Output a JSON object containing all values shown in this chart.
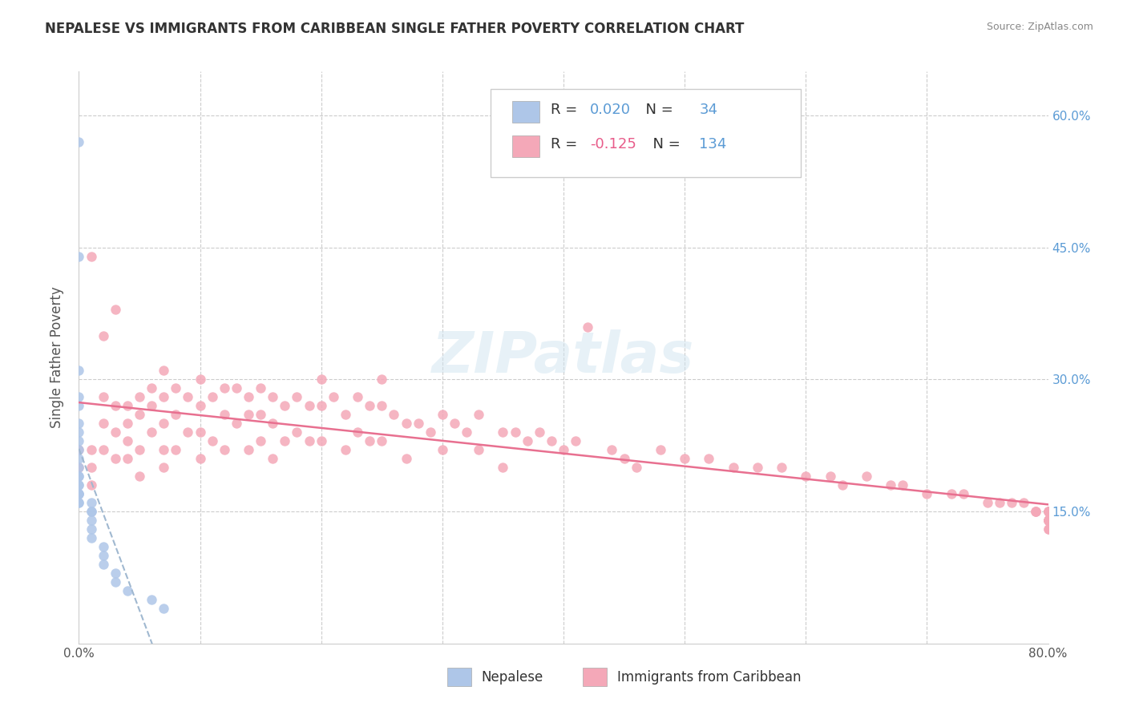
{
  "title": "NEPALESE VS IMMIGRANTS FROM CARIBBEAN SINGLE FATHER POVERTY CORRELATION CHART",
  "source": "Source: ZipAtlas.com",
  "xlabel_bottom": "",
  "ylabel": "Single Father Poverty",
  "legend_label1": "Nepalese",
  "legend_label2": "Immigrants from Caribbean",
  "R1": 0.02,
  "N1": 34,
  "R2": -0.125,
  "N2": 134,
  "color1": "#aec6e8",
  "color2": "#f4a8b8",
  "line1_color": "#5b9bd5",
  "line2_color": "#e85c8a",
  "trendline1_color": "#a0b8d0",
  "trendline1_style": "--",
  "trendline2_color": "#e87090",
  "trendline2_style": "-",
  "xmin": 0.0,
  "xmax": 0.8,
  "ymin": 0.0,
  "ymax": 0.65,
  "x_ticks": [
    0.0,
    0.1,
    0.2,
    0.3,
    0.4,
    0.5,
    0.6,
    0.7,
    0.8
  ],
  "x_tick_labels": [
    "0.0%",
    "",
    "",
    "",
    "",
    "",
    "",
    "",
    "80.0%"
  ],
  "y_ticks_left": [
    0.0,
    0.15,
    0.3,
    0.45,
    0.6
  ],
  "y_tick_labels_left": [
    "",
    "",
    "",
    "",
    ""
  ],
  "y_ticks_right": [
    0.15,
    0.3,
    0.45,
    0.6
  ],
  "y_tick_labels_right": [
    "15.0%",
    "30.0%",
    "45.0%",
    "60.0%"
  ],
  "watermark": "ZIPatlas",
  "nepalese_x": [
    0.0,
    0.0,
    0.0,
    0.0,
    0.0,
    0.0,
    0.0,
    0.0,
    0.0,
    0.0,
    0.0,
    0.0,
    0.0,
    0.0,
    0.0,
    0.0,
    0.0,
    0.0,
    0.0,
    0.0,
    0.01,
    0.01,
    0.01,
    0.01,
    0.01,
    0.01,
    0.02,
    0.02,
    0.02,
    0.03,
    0.03,
    0.04,
    0.06,
    0.07
  ],
  "nepalese_y": [
    0.57,
    0.44,
    0.31,
    0.28,
    0.27,
    0.25,
    0.24,
    0.23,
    0.22,
    0.21,
    0.2,
    0.19,
    0.19,
    0.18,
    0.18,
    0.17,
    0.17,
    0.17,
    0.16,
    0.16,
    0.16,
    0.15,
    0.15,
    0.14,
    0.13,
    0.12,
    0.11,
    0.1,
    0.09,
    0.08,
    0.07,
    0.06,
    0.05,
    0.04
  ],
  "caribbean_x": [
    0.0,
    0.0,
    0.01,
    0.01,
    0.01,
    0.01,
    0.02,
    0.02,
    0.02,
    0.02,
    0.03,
    0.03,
    0.03,
    0.03,
    0.04,
    0.04,
    0.04,
    0.04,
    0.05,
    0.05,
    0.05,
    0.05,
    0.06,
    0.06,
    0.06,
    0.07,
    0.07,
    0.07,
    0.07,
    0.07,
    0.08,
    0.08,
    0.08,
    0.09,
    0.09,
    0.1,
    0.1,
    0.1,
    0.1,
    0.11,
    0.11,
    0.12,
    0.12,
    0.12,
    0.13,
    0.13,
    0.14,
    0.14,
    0.14,
    0.15,
    0.15,
    0.15,
    0.16,
    0.16,
    0.16,
    0.17,
    0.17,
    0.18,
    0.18,
    0.19,
    0.19,
    0.2,
    0.2,
    0.2,
    0.21,
    0.22,
    0.22,
    0.23,
    0.23,
    0.24,
    0.24,
    0.25,
    0.25,
    0.25,
    0.26,
    0.27,
    0.27,
    0.28,
    0.29,
    0.3,
    0.3,
    0.31,
    0.32,
    0.33,
    0.33,
    0.35,
    0.35,
    0.36,
    0.37,
    0.38,
    0.39,
    0.4,
    0.41,
    0.42,
    0.44,
    0.45,
    0.46,
    0.48,
    0.5,
    0.52,
    0.54,
    0.56,
    0.58,
    0.6,
    0.62,
    0.63,
    0.65,
    0.67,
    0.68,
    0.7,
    0.72,
    0.73,
    0.75,
    0.76,
    0.77,
    0.78,
    0.79,
    0.79,
    0.79,
    0.8,
    0.8,
    0.8,
    0.8,
    0.8,
    0.8,
    0.8,
    0.8,
    0.8,
    0.8,
    0.8,
    0.8,
    0.8,
    0.8,
    0.8
  ],
  "caribbean_y": [
    0.22,
    0.2,
    0.44,
    0.22,
    0.2,
    0.18,
    0.35,
    0.28,
    0.25,
    0.22,
    0.38,
    0.27,
    0.24,
    0.21,
    0.27,
    0.25,
    0.23,
    0.21,
    0.28,
    0.26,
    0.22,
    0.19,
    0.29,
    0.27,
    0.24,
    0.31,
    0.28,
    0.25,
    0.22,
    0.2,
    0.29,
    0.26,
    0.22,
    0.28,
    0.24,
    0.3,
    0.27,
    0.24,
    0.21,
    0.28,
    0.23,
    0.29,
    0.26,
    0.22,
    0.29,
    0.25,
    0.28,
    0.26,
    0.22,
    0.29,
    0.26,
    0.23,
    0.28,
    0.25,
    0.21,
    0.27,
    0.23,
    0.28,
    0.24,
    0.27,
    0.23,
    0.3,
    0.27,
    0.23,
    0.28,
    0.26,
    0.22,
    0.28,
    0.24,
    0.27,
    0.23,
    0.3,
    0.27,
    0.23,
    0.26,
    0.25,
    0.21,
    0.25,
    0.24,
    0.26,
    0.22,
    0.25,
    0.24,
    0.26,
    0.22,
    0.24,
    0.2,
    0.24,
    0.23,
    0.24,
    0.23,
    0.22,
    0.23,
    0.36,
    0.22,
    0.21,
    0.2,
    0.22,
    0.21,
    0.21,
    0.2,
    0.2,
    0.2,
    0.19,
    0.19,
    0.18,
    0.19,
    0.18,
    0.18,
    0.17,
    0.17,
    0.17,
    0.16,
    0.16,
    0.16,
    0.16,
    0.15,
    0.15,
    0.15,
    0.15,
    0.15,
    0.15,
    0.15,
    0.15,
    0.14,
    0.14,
    0.14,
    0.14,
    0.14,
    0.14,
    0.14,
    0.14,
    0.13,
    0.13
  ]
}
